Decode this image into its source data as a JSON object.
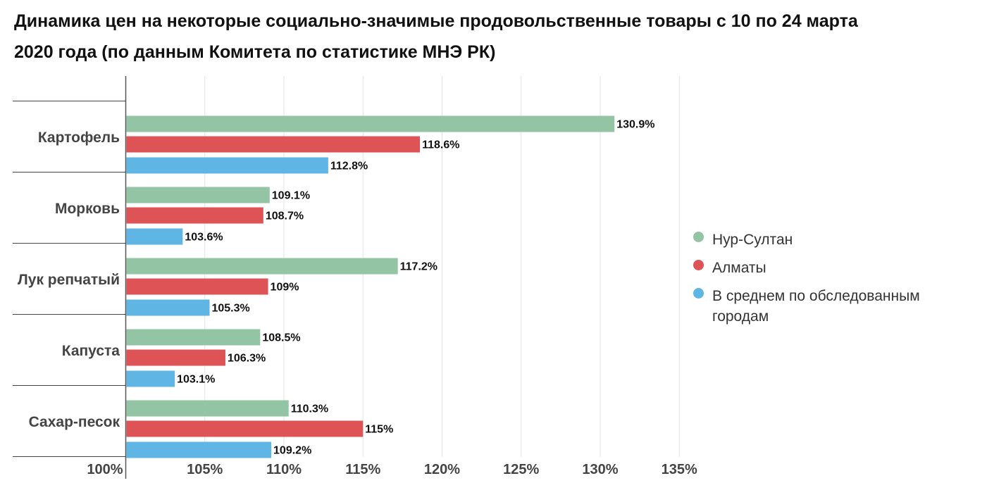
{
  "title": "Динамика цен на некоторые социально-значимые продовольственные товары с 10 по 24 марта 2020 года (по данным Комитета по статистике МНЭ РК)",
  "chart_data": {
    "type": "bar",
    "orientation": "horizontal",
    "categories": [
      "Картофель",
      "Морковь",
      "Лук репчатый",
      "Капуста",
      "Сахар-песок"
    ],
    "series": [
      {
        "name": "Нур-Султан",
        "color": "#93c4a3",
        "values": [
          130.9,
          109.1,
          117.2,
          108.5,
          110.3
        ],
        "labels": [
          "130.9%",
          "109.1%",
          "117.2%",
          "108.5%",
          "110.3%"
        ]
      },
      {
        "name": "Алматы",
        "color": "#de5456",
        "values": [
          118.6,
          108.7,
          109,
          106.3,
          115
        ],
        "labels": [
          "118.6%",
          "108.7%",
          "109%",
          "106.3%",
          "115%"
        ]
      },
      {
        "name": "В среднем по обследованным городам",
        "color": "#5fb6e4",
        "values": [
          112.8,
          103.6,
          105.3,
          103.1,
          109.2
        ],
        "labels": [
          "112.8%",
          "103.6%",
          "105.3%",
          "103.1%",
          "109.2%"
        ]
      }
    ],
    "xlim": [
      100,
      135
    ],
    "xticks": [
      100,
      105,
      110,
      115,
      120,
      125,
      130,
      135
    ],
    "xtick_labels": [
      "100%",
      "105%",
      "110%",
      "115%",
      "120%",
      "125%",
      "130%",
      "135%"
    ],
    "grid": true,
    "legend_position": "right"
  }
}
